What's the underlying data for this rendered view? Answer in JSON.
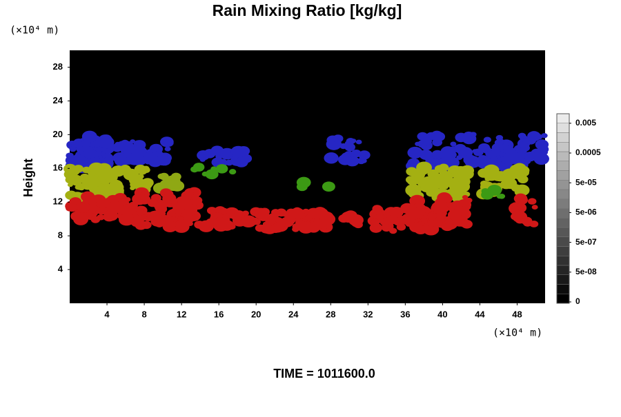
{
  "chart_data": {
    "type": "heatmap",
    "title": "Rain Mixing Ratio [kg/kg]",
    "x_unit": "(×10⁴ m)",
    "y_unit": "(×10⁴ m)",
    "ylabel": "Height",
    "xlim": [
      0,
      51
    ],
    "xticks": [
      4,
      8,
      12,
      16,
      20,
      24,
      28,
      32,
      36,
      40,
      44,
      48
    ],
    "ylim": [
      0,
      30
    ],
    "yticks": [
      4,
      8,
      12,
      16,
      20,
      24,
      28
    ],
    "colorbar_ticks": [
      0,
      {
        "value": 5e-08,
        "label": "5e-08"
      },
      {
        "value": 5e-07,
        "label": "5e-07"
      },
      {
        "value": 5e-06,
        "label": "5e-06"
      },
      {
        "value": 5e-05,
        "label": "5e-05"
      },
      0.0005,
      0.005
    ],
    "footer": "TIME = 1011600.0"
  }
}
